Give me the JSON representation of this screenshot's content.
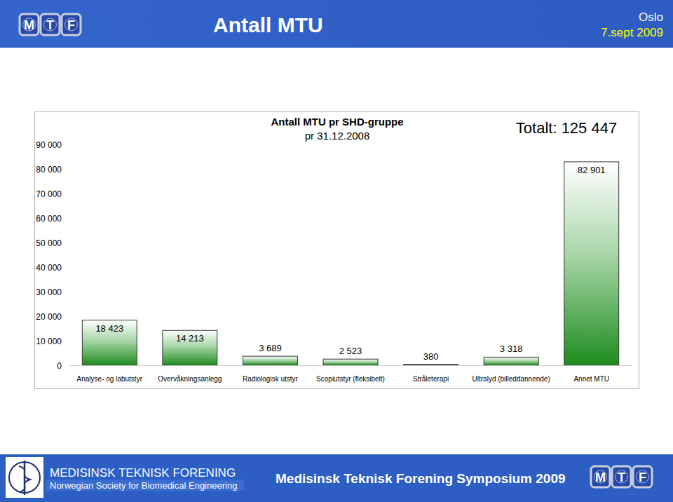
{
  "header": {
    "title": "Antall MTU",
    "place": "Oslo",
    "date": "7.sept 2009",
    "logo": "MTF"
  },
  "chart_data": {
    "type": "bar",
    "title": "Antall MTU pr SHD-gruppe",
    "subtitle": "pr 31.12.2008",
    "annotation": "Totalt: 125 447",
    "categories": [
      "Analyse- og labutstyr",
      "Overvåkningsanlegg",
      "Radiologisk utstyr",
      "Scopiutstyr (fleksibelt)",
      "Stråleterapi",
      "Ultralyd (billeddannende)",
      "Annet MTU"
    ],
    "values": [
      18423,
      14213,
      3689,
      2523,
      380,
      3318,
      82901
    ],
    "value_labels": [
      "18 423",
      "14 213",
      "3 689",
      "2 523",
      "380",
      "3 318",
      "82 901"
    ],
    "color": "#1e8c1e",
    "ylim": [
      0,
      90000
    ],
    "yticks": [
      0,
      {
        "value": 10000,
        "label": "10 000"
      },
      {
        "value": 20000,
        "label": "20 000"
      },
      {
        "value": 30000,
        "label": "30 000"
      },
      {
        "value": 40000,
        "label": "40 000"
      },
      {
        "value": 50000,
        "label": "50 000"
      },
      {
        "value": 60000,
        "label": "60 000"
      },
      {
        "value": 70000,
        "label": "70 000"
      },
      {
        "value": 80000,
        "label": "80 000"
      },
      {
        "value": 90000,
        "label": "90 000"
      }
    ],
    "grid": false,
    "data_labels": true
  },
  "footer": {
    "org": "MEDISINSK TEKNISK FORENING",
    "org_en": "Norwegian Society for Biomedical Engineering",
    "event": "Medisinsk Teknisk Forening Symposium 2009"
  }
}
